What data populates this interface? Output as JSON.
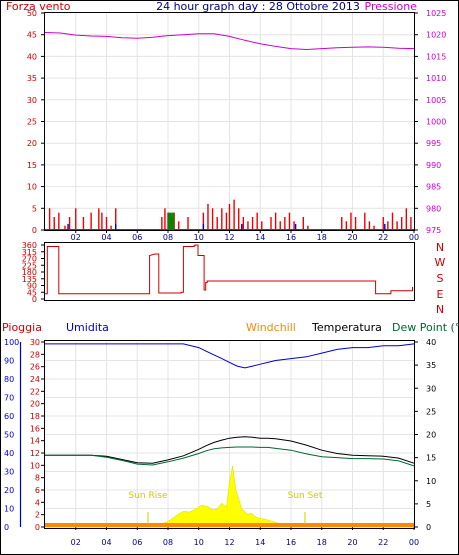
{
  "chart_data": [
    {
      "type": "line",
      "title": "24 hour graph day : 28 Ottobre 2013",
      "left_label": "Forza vento",
      "right_label": "Pressione",
      "x_ticks": [
        "02",
        "04",
        "06",
        "08",
        "10",
        "12",
        "14",
        "16",
        "18",
        "20",
        "22",
        "00"
      ],
      "left_ticks": [
        "0",
        "5",
        "10",
        "15",
        "20",
        "25",
        "30",
        "35",
        "40",
        "45",
        "50"
      ],
      "right_ticks": [
        "975",
        "980",
        "985",
        "990",
        "995",
        "1000",
        "1005",
        "1010",
        "1015",
        "1020",
        "1025"
      ],
      "ylim_left": [
        0,
        50
      ],
      "ylim_right": [
        975,
        1025
      ],
      "grid": true,
      "colors": {
        "wind": "#ee0000",
        "gust_dir": "#0000cc",
        "gust": "#008800",
        "pressure": "#cc00cc",
        "left_axis": "#cc0000",
        "right_axis": "#cc00cc"
      },
      "series": [
        {
          "kind": "pressure",
          "x": [
            0,
            1,
            2,
            3,
            4,
            5,
            6,
            7,
            8,
            9,
            10,
            11,
            12,
            13,
            14,
            15,
            16,
            17,
            18,
            19,
            20,
            21,
            22,
            23,
            24
          ],
          "values": [
            1020.5,
            1020.4,
            1019.9,
            1019.7,
            1019.6,
            1019.3,
            1019.2,
            1019.4,
            1019.8,
            1020.0,
            1020.2,
            1020.2,
            1019.6,
            1018.7,
            1017.9,
            1017.3,
            1016.8,
            1016.6,
            1016.8,
            1017.0,
            1017.1,
            1017.2,
            1017.1,
            1016.9,
            1016.8
          ]
        },
        {
          "kind": "wind",
          "x": [
            0.0,
            0.3,
            0.6,
            0.9,
            1.0,
            1.3,
            1.6,
            2.0,
            2.5,
            3.0,
            3.2,
            3.5,
            3.7,
            4.0,
            4.3,
            4.6,
            7.6,
            7.8,
            8.0,
            8.2,
            8.4,
            8.7,
            9.0,
            9.3,
            10.0,
            10.3,
            10.6,
            10.9,
            11.2,
            11.5,
            11.8,
            12.0,
            12.3,
            12.6,
            12.9,
            13.2,
            13.5,
            13.8,
            14.1,
            14.4,
            14.7,
            15.0,
            15.3,
            15.6,
            15.9,
            16.2,
            16.5,
            16.8,
            17.1,
            19.0,
            19.3,
            19.6,
            19.9,
            20.2,
            20.5,
            20.8,
            21.1,
            21.4,
            21.7,
            22.0,
            22.3,
            22.6,
            22.9,
            23.2,
            23.5,
            23.8
          ],
          "values": [
            0,
            5,
            3,
            4,
            0,
            1,
            3,
            5,
            3,
            4,
            0,
            5,
            4,
            3,
            1,
            5,
            3,
            5,
            4,
            3,
            4,
            2,
            0,
            3,
            0,
            4,
            6,
            5,
            3,
            5,
            4,
            6,
            7,
            5,
            3,
            2,
            3,
            4,
            2,
            0,
            3,
            4,
            2,
            3,
            4,
            2,
            0,
            3,
            1,
            0,
            3,
            2,
            4,
            3,
            0,
            4,
            2,
            1,
            0,
            3,
            2,
            4,
            2,
            3,
            5,
            3
          ]
        }
      ]
    },
    {
      "type": "line",
      "left_ticks": [
        "0",
        "45",
        "90",
        "135",
        "180",
        "225",
        "270",
        "315",
        "360"
      ],
      "right_labels": [
        "N",
        "W",
        "S",
        "E",
        "N"
      ],
      "ylim": [
        0,
        360
      ],
      "colors": {
        "line": "#cc0000",
        "labels": "#cc0000"
      },
      "series": [
        {
          "name": "Wind direction",
          "x": [
            0.0,
            0.15,
            0.15,
            0.9,
            0.9,
            6.8,
            6.8,
            7.15,
            7.15,
            7.4,
            7.4,
            8.85,
            8.85,
            9.0,
            9.0,
            9.7,
            9.7,
            9.75,
            9.75,
            9.95,
            9.95,
            10.35,
            10.35,
            10.45,
            10.45,
            10.55,
            10.55,
            21.5,
            21.5,
            22.5,
            22.5,
            23.9,
            23.9
          ],
          "values": [
            35,
            35,
            350,
            350,
            35,
            35,
            290,
            300,
            300,
            300,
            40,
            40,
            45,
            45,
            350,
            350,
            355,
            355,
            360,
            360,
            290,
            290,
            60,
            60,
            110,
            110,
            120,
            120,
            35,
            35,
            55,
            55,
            80
          ]
        }
      ]
    },
    {
      "type": "line",
      "left_label": "Pioggia",
      "second_label": "Umidita",
      "legend": [
        "Windchill",
        "Temperatura",
        "Dew Point (°C"
      ],
      "left_ticks": [
        "0",
        "10",
        "20",
        "30",
        "40",
        "50",
        "60",
        "70",
        "80",
        "90",
        "100"
      ],
      "humidity_ticks": [
        "0",
        "2",
        "4",
        "6",
        "8",
        "10",
        "12",
        "14",
        "16",
        "18",
        "20",
        "22",
        "24",
        "26",
        "28",
        "30"
      ],
      "right_ticks": [
        "0",
        "5",
        "10",
        "15",
        "20",
        "25",
        "30",
        "35",
        "40"
      ],
      "ylim_humidity": [
        0,
        100
      ],
      "ylim_temp": [
        0,
        40
      ],
      "annotations": [
        "Sun Rise",
        "Sun Set"
      ],
      "colors": {
        "rain": "#ff8800",
        "humidity": "#0000cc",
        "temperature": "#000000",
        "dewpoint": "#006633",
        "windchill": "#ff8800",
        "solar": "#ffff00",
        "solar_edge": "#dddd00",
        "left_axis": "#0000cc",
        "right_axis": "#000000",
        "rain_axis": "#cc0000"
      },
      "series": [
        {
          "name": "Umidita",
          "x": [
            0,
            1,
            2,
            3,
            4,
            5,
            6,
            7,
            8,
            9,
            10,
            10.5,
            11,
            11.5,
            12,
            12.5,
            13,
            13.5,
            14,
            14.5,
            15,
            16,
            17,
            18,
            19,
            20,
            21,
            22,
            23,
            24
          ],
          "values": [
            99,
            99,
            99,
            99,
            99,
            99,
            99,
            99,
            99,
            99,
            97,
            95,
            93,
            91,
            89,
            87,
            86,
            87,
            88,
            89,
            90,
            91,
            92,
            94,
            96,
            97,
            97,
            98,
            98,
            99
          ]
        },
        {
          "name": "Temperatura",
          "x": [
            0,
            1,
            2,
            3,
            4,
            5,
            6,
            7,
            8,
            9,
            10,
            10.5,
            11,
            11.5,
            12,
            12.5,
            13,
            13.5,
            14,
            14.5,
            15,
            16,
            17,
            18,
            19,
            20,
            21,
            22,
            23,
            24
          ],
          "values": [
            15.5,
            15.5,
            15.5,
            15.5,
            15.3,
            14.6,
            13.9,
            13.8,
            14.5,
            15.4,
            16.8,
            17.6,
            18.3,
            18.8,
            19.2,
            19.4,
            19.5,
            19.4,
            19.2,
            19.2,
            19.1,
            18.6,
            17.7,
            16.6,
            15.9,
            15.5,
            15.4,
            15.3,
            14.9,
            13.8
          ]
        },
        {
          "name": "Dew Point (°C",
          "x": [
            0,
            1,
            2,
            3,
            4,
            5,
            6,
            7,
            8,
            9,
            10,
            10.5,
            11,
            11.5,
            12,
            12.5,
            13,
            13.5,
            14,
            14.5,
            15,
            16,
            17,
            18,
            19,
            20,
            21,
            22,
            23,
            24
          ],
          "values": [
            15.5,
            15.5,
            15.5,
            15.5,
            15.1,
            14.4,
            13.6,
            13.4,
            14.1,
            14.9,
            15.9,
            16.5,
            16.9,
            17.1,
            17.2,
            17.3,
            17.3,
            17.3,
            17.2,
            17.2,
            17.0,
            16.6,
            15.8,
            15.2,
            15.0,
            14.8,
            14.8,
            14.7,
            14.3,
            13.2
          ]
        },
        {
          "name": "Solar",
          "x": [
            0,
            6.7,
            7.0,
            7.4,
            7.8,
            8.2,
            8.6,
            9.0,
            9.4,
            9.8,
            10.2,
            10.6,
            10.9,
            11.2,
            11.5,
            11.8,
            12.0,
            12.2,
            12.4,
            12.6,
            12.8,
            13.0,
            13.2,
            13.4,
            13.6,
            13.8,
            14.1,
            14.4,
            14.7,
            15.0,
            15.4,
            15.8,
            16.2,
            16.6,
            17.1,
            24
          ],
          "values": [
            0,
            0,
            0.1,
            0.3,
            0.9,
            1.6,
            2.6,
            3.4,
            3.2,
            3.9,
            4.7,
            4.4,
            3.7,
            3.9,
            5.1,
            4.3,
            9.7,
            13.2,
            8.1,
            6.1,
            3.9,
            3.3,
            2.7,
            3.0,
            2.4,
            2.0,
            1.8,
            1.6,
            1.3,
            1.0,
            0.6,
            0.3,
            0.1,
            0.0,
            0,
            0
          ]
        }
      ]
    }
  ]
}
